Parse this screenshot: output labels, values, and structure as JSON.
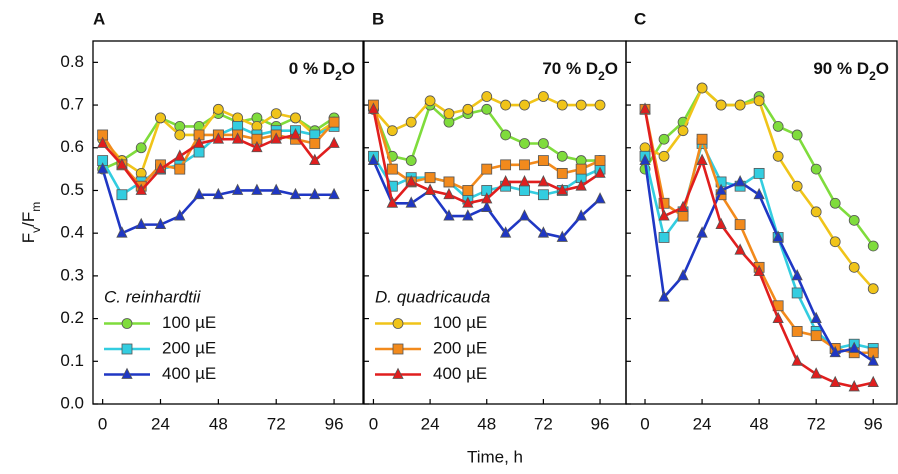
{
  "chart_data": [
    {
      "type": "line",
      "label": "A",
      "annotation": [
        "0 % D",
        "2",
        "O"
      ],
      "ylabel": [
        "F",
        "v",
        "/F",
        "m"
      ],
      "legend": "C. reinhardtii",
      "x": [
        0,
        8,
        16,
        24,
        32,
        40,
        48,
        56,
        64,
        72,
        80,
        88,
        96
      ],
      "xlim": [
        -4,
        108
      ],
      "xticks": [
        0,
        24,
        48,
        72,
        96
      ],
      "ylim": [
        0,
        0.85
      ],
      "yticks": [
        {
          "value": 0,
          "label": "0.0"
        },
        0.1,
        0.2,
        0.3,
        0.4,
        0.5,
        0.6,
        0.7,
        0.8
      ],
      "series": [
        {
          "name": "100 µE",
          "group": "C. reinhardtii",
          "color": "#7fdc3c",
          "marker": "circle",
          "values": [
            0.55,
            0.57,
            0.6,
            0.67,
            0.65,
            0.65,
            0.68,
            0.66,
            0.67,
            0.65,
            0.67,
            0.64,
            0.67
          ]
        },
        {
          "name": "100 µE",
          "group": "D. quadricauda",
          "color": "#f0c419",
          "marker": "circle",
          "values": [
            0.62,
            0.57,
            0.54,
            0.67,
            0.63,
            0.63,
            0.69,
            0.67,
            0.65,
            0.68,
            0.67,
            0.63,
            0.66
          ]
        },
        {
          "name": "200 µE",
          "group": "C. reinhardtii",
          "color": "#33cde0",
          "marker": "square",
          "values": [
            0.57,
            0.49,
            0.52,
            0.55,
            0.56,
            0.59,
            0.63,
            0.65,
            0.63,
            0.64,
            0.64,
            0.63,
            0.65
          ]
        },
        {
          "name": "200 µE",
          "group": "D. quadricauda",
          "color": "#f28a1c",
          "marker": "square",
          "values": [
            0.63,
            0.56,
            0.51,
            0.56,
            0.55,
            0.63,
            0.63,
            0.63,
            0.62,
            0.63,
            0.62,
            0.61,
            0.66
          ]
        },
        {
          "name": "400 µE",
          "group": "C. reinhardtii",
          "color": "#1f37c4",
          "marker": "triangle",
          "values": [
            0.55,
            0.4,
            0.42,
            0.42,
            0.44,
            0.49,
            0.49,
            0.5,
            0.5,
            0.5,
            0.49,
            0.49,
            0.49
          ]
        },
        {
          "name": "400 µE",
          "group": "D. quadricauda",
          "color": "#e01e1e",
          "marker": "triangle",
          "values": [
            0.61,
            0.56,
            0.5,
            0.55,
            0.58,
            0.61,
            0.62,
            0.62,
            0.6,
            0.62,
            0.63,
            0.57,
            0.61
          ]
        }
      ]
    },
    {
      "type": "line",
      "label": "B",
      "annotation": [
        "70 % D",
        "2",
        "O"
      ],
      "xlabel": "Time, h",
      "legend": "D. quadricauda",
      "x": [
        0,
        8,
        16,
        24,
        32,
        40,
        48,
        56,
        64,
        72,
        80,
        88,
        96
      ],
      "xlim": [
        -4,
        107
      ],
      "xticks": [
        0,
        24,
        48,
        72,
        96
      ],
      "ylim": [
        0,
        0.85
      ],
      "yticks": [
        {
          "value": 0,
          "label": "0.0"
        },
        0.1,
        0.2,
        0.3,
        0.4,
        0.5,
        0.6,
        0.7,
        0.8
      ],
      "series": [
        {
          "name": "100 µE",
          "group": "C. reinhardtii",
          "color": "#7fdc3c",
          "marker": "circle",
          "values": [
            0.69,
            0.58,
            0.57,
            0.7,
            0.66,
            0.68,
            0.69,
            0.63,
            0.61,
            0.61,
            0.58,
            0.57,
            0.57
          ]
        },
        {
          "name": "100 µE",
          "group": "D. quadricauda",
          "color": "#f0c419",
          "marker": "circle",
          "values": [
            0.69,
            0.64,
            0.66,
            0.71,
            0.68,
            0.69,
            0.72,
            0.7,
            0.7,
            0.72,
            0.7,
            0.7,
            0.7
          ]
        },
        {
          "name": "200 µE",
          "group": "C. reinhardtii",
          "color": "#33cde0",
          "marker": "square",
          "values": [
            0.58,
            0.51,
            0.53,
            0.53,
            0.52,
            0.48,
            0.5,
            0.51,
            0.5,
            0.49,
            0.5,
            0.53,
            0.55
          ]
        },
        {
          "name": "200 µE",
          "group": "D. quadricauda",
          "color": "#f28a1c",
          "marker": "square",
          "values": [
            0.7,
            0.55,
            0.52,
            0.53,
            0.52,
            0.5,
            0.55,
            0.56,
            0.56,
            0.57,
            0.54,
            0.55,
            0.57
          ]
        },
        {
          "name": "400 µE",
          "group": "C. reinhardtii",
          "color": "#1f37c4",
          "marker": "triangle",
          "values": [
            0.57,
            0.47,
            0.47,
            0.5,
            0.44,
            0.44,
            0.46,
            0.4,
            0.44,
            0.4,
            0.39,
            0.44,
            0.48
          ]
        },
        {
          "name": "400 µE",
          "group": "D. quadricauda",
          "color": "#e01e1e",
          "marker": "triangle",
          "values": [
            0.69,
            0.47,
            0.52,
            0.5,
            0.49,
            0.47,
            0.48,
            0.52,
            0.52,
            0.52,
            0.5,
            0.51,
            0.54
          ]
        }
      ]
    },
    {
      "type": "line",
      "label": "C",
      "annotation": [
        "90 % D",
        "2",
        "O"
      ],
      "x": [
        0,
        8,
        16,
        24,
        32,
        40,
        48,
        56,
        64,
        72,
        80,
        88,
        96
      ],
      "xlim": [
        -8,
        106
      ],
      "xticks": [
        0,
        24,
        48,
        72,
        96
      ],
      "ylim": [
        0,
        0.85
      ],
      "yticks": [
        {
          "value": 0,
          "label": "0.0"
        },
        0.1,
        0.2,
        0.3,
        0.4,
        0.5,
        0.6,
        0.7,
        0.8
      ],
      "series": [
        {
          "name": "100 µE",
          "group": "C. reinhardtii",
          "color": "#7fdc3c",
          "marker": "circle",
          "values": [
            0.55,
            0.62,
            0.66,
            0.74,
            0.7,
            0.7,
            0.72,
            0.65,
            0.63,
            0.55,
            0.47,
            0.43,
            0.37
          ]
        },
        {
          "name": "100 µE",
          "group": "D. quadricauda",
          "color": "#f0c419",
          "marker": "circle",
          "values": [
            0.6,
            0.58,
            0.64,
            0.74,
            0.7,
            0.7,
            0.71,
            0.58,
            0.51,
            0.45,
            0.38,
            0.32,
            0.27
          ]
        },
        {
          "name": "200 µE",
          "group": "C. reinhardtii",
          "color": "#33cde0",
          "marker": "square",
          "values": [
            0.58,
            0.39,
            0.45,
            0.61,
            0.52,
            0.51,
            0.54,
            0.39,
            0.26,
            0.17,
            0.13,
            0.14,
            0.13
          ]
        },
        {
          "name": "200 µE",
          "group": "D. quadricauda",
          "color": "#f28a1c",
          "marker": "square",
          "values": [
            0.69,
            0.47,
            0.44,
            0.62,
            0.49,
            0.42,
            0.32,
            0.23,
            0.17,
            0.16,
            0.13,
            0.12,
            0.12
          ]
        },
        {
          "name": "400 µE",
          "group": "C. reinhardtii",
          "color": "#1f37c4",
          "marker": "triangle",
          "values": [
            0.57,
            0.25,
            0.3,
            0.4,
            0.5,
            0.52,
            0.49,
            0.39,
            0.3,
            0.2,
            0.12,
            0.13,
            0.1
          ]
        },
        {
          "name": "400 µE",
          "group": "D. quadricauda",
          "color": "#e01e1e",
          "marker": "triangle",
          "values": [
            0.69,
            0.44,
            0.46,
            0.57,
            0.42,
            0.36,
            0.31,
            0.2,
            0.1,
            0.07,
            0.05,
            0.04,
            0.05
          ]
        }
      ]
    }
  ]
}
